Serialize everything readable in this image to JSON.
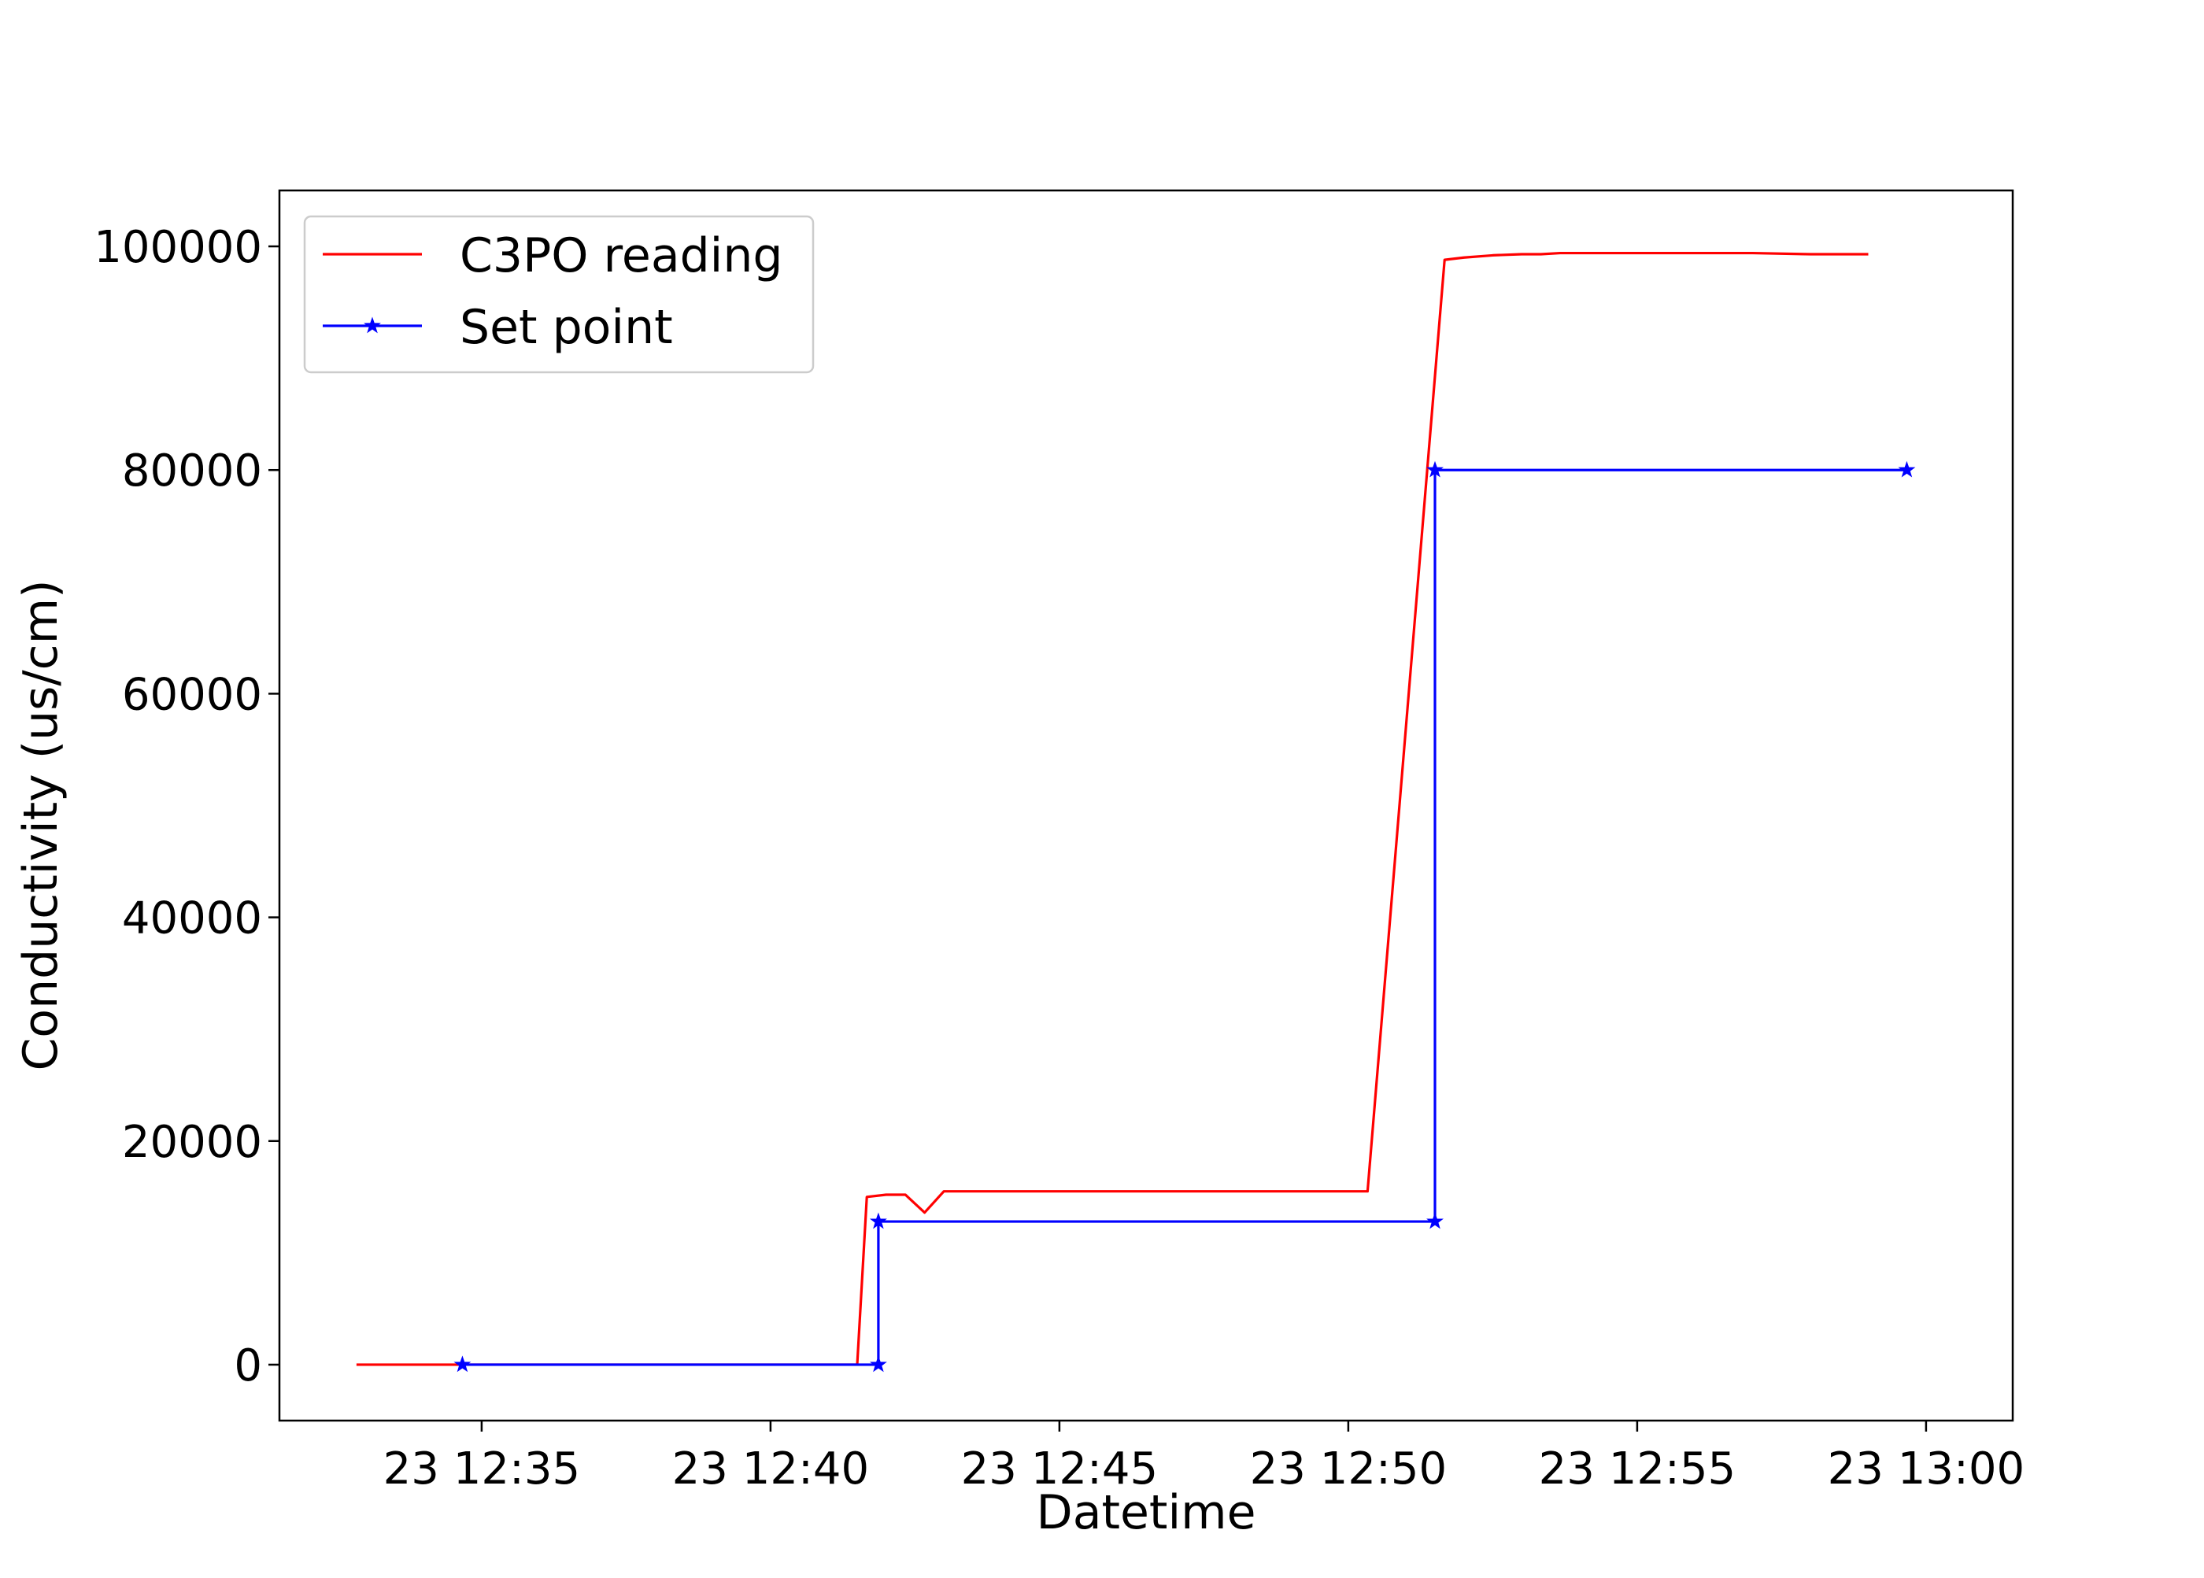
{
  "chart_data": {
    "type": "line",
    "title": "",
    "xlabel": "Datetime",
    "ylabel": "Conductivity (us/cm)",
    "x_ticks": [
      "23 12:35",
      "23 12:40",
      "23 12:45",
      "23 12:50",
      "23 12:55",
      "23 13:00"
    ],
    "y_ticks": [
      "0",
      "20000",
      "40000",
      "60000",
      "80000",
      "100000"
    ],
    "xlim": [
      "12:31:30",
      "13:01:30"
    ],
    "ylim": [
      -5000,
      105000
    ],
    "grid": false,
    "legend_position": "top-left",
    "series": [
      {
        "name": "C3PO reading",
        "color": "#ff0000",
        "marker": "none",
        "points": [
          [
            "12:32:50",
            0
          ],
          [
            "12:34:00",
            0
          ],
          [
            "12:35:00",
            0
          ],
          [
            "12:38:00",
            0
          ],
          [
            "12:41:20",
            0
          ],
          [
            "12:41:30",
            0
          ],
          [
            "12:41:40",
            15000
          ],
          [
            "12:42:00",
            15200
          ],
          [
            "12:42:20",
            15200
          ],
          [
            "12:42:40",
            13600
          ],
          [
            "12:43:00",
            15500
          ],
          [
            "12:44:00",
            15500
          ],
          [
            "12:46:00",
            15500
          ],
          [
            "12:48:00",
            15500
          ],
          [
            "12:50:00",
            15500
          ],
          [
            "12:50:20",
            15500
          ],
          [
            "12:51:40",
            98800
          ],
          [
            "12:52:00",
            99000
          ],
          [
            "12:52:30",
            99200
          ],
          [
            "12:53:00",
            99300
          ],
          [
            "12:53:20",
            99300
          ],
          [
            "12:53:40",
            99400
          ],
          [
            "12:54:00",
            99400
          ],
          [
            "12:55:00",
            99400
          ],
          [
            "12:56:00",
            99400
          ],
          [
            "12:57:00",
            99400
          ],
          [
            "12:58:00",
            99300
          ],
          [
            "12:58:30",
            99300
          ],
          [
            "12:59:00",
            99300
          ]
        ]
      },
      {
        "name": "Set point",
        "color": "#0000ff",
        "marker": "star",
        "points": [
          [
            "12:34:40",
            0
          ],
          [
            "12:41:52",
            0
          ],
          [
            "12:41:52",
            12800
          ],
          [
            "12:51:30",
            12800
          ],
          [
            "12:51:30",
            80000
          ],
          [
            "12:59:40",
            80000
          ]
        ]
      }
    ]
  }
}
